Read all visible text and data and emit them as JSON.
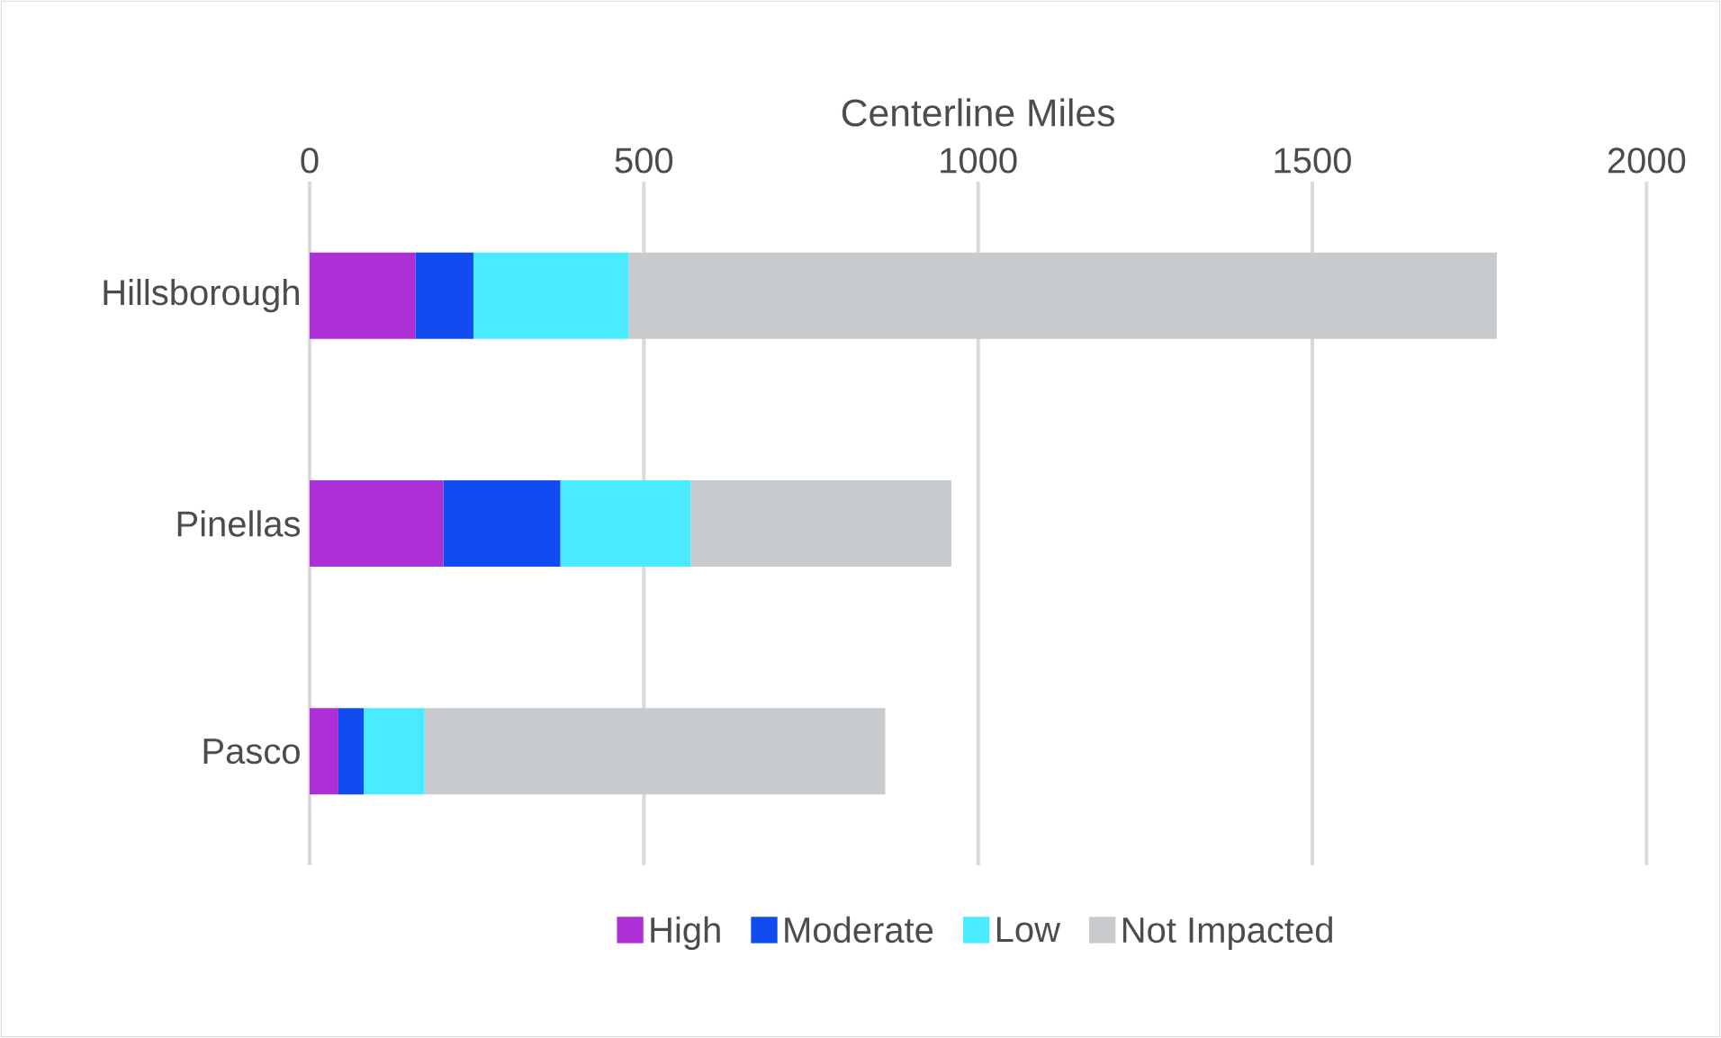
{
  "chart_data": {
    "type": "bar",
    "orientation": "horizontal",
    "stacked": true,
    "xlabel": "Centerline Miles",
    "categories": [
      "Hillsborough",
      "Pinellas",
      "Pasco"
    ],
    "series": [
      {
        "name": "High",
        "color": "#ad2fd6",
        "values": [
          158,
          200,
          43
        ]
      },
      {
        "name": "Moderate",
        "color": "#104cef",
        "values": [
          87,
          175,
          38
        ]
      },
      {
        "name": "Low",
        "color": "#4aebff",
        "values": [
          232,
          195,
          91
        ]
      },
      {
        "name": "Not Impacted",
        "color": "#c8cbce",
        "values": [
          1299,
          390,
          689
        ]
      }
    ],
    "xlim": [
      0,
      2000
    ],
    "xticks": [
      0,
      500,
      1000,
      1500,
      2000
    ],
    "grid": "x",
    "legend": "bottom"
  }
}
